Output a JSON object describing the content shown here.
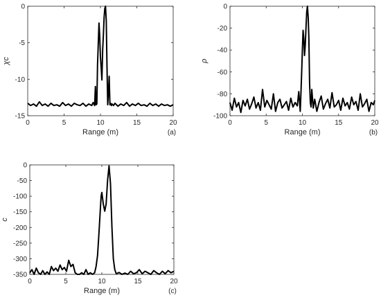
{
  "chart_data": [
    {
      "type": "line",
      "panel_label": "(a)",
      "xlabel": "Range (m)",
      "ylabel": "χc",
      "xlim": [
        0,
        20
      ],
      "ylim": [
        -15,
        0
      ],
      "xticks": [
        "0",
        "5",
        "10",
        "15",
        "20"
      ],
      "yticks": [
        "0",
        "-5",
        "-10",
        "-15"
      ],
      "grid": false,
      "series": [
        {
          "x": [
            0,
            0.4,
            0.8,
            1.2,
            1.6,
            2.0,
            2.4,
            2.8,
            3.2,
            3.6,
            4.0,
            4.4,
            4.8,
            5.2,
            5.6,
            6.0,
            6.4,
            6.8,
            7.2,
            7.6,
            8.0,
            8.4,
            8.8,
            9.0,
            9.2,
            9.3,
            9.4,
            9.5,
            9.6,
            9.8,
            9.9,
            10.0,
            10.1,
            10.2,
            10.3,
            10.4,
            10.5,
            10.6,
            10.7,
            10.8,
            10.9,
            11.0,
            11.1,
            11.2,
            11.3,
            11.4,
            11.5,
            11.6,
            11.8,
            12.0,
            12.4,
            12.8,
            13.2,
            13.6,
            14.0,
            14.4,
            14.8,
            15.2,
            15.6,
            16.0,
            16.4,
            16.8,
            17.2,
            17.6,
            18.0,
            18.4,
            18.8,
            19.2,
            19.6,
            20.0
          ],
          "y": [
            -13.3,
            -13.6,
            -13.4,
            -13.7,
            -13.1,
            -13.6,
            -13.4,
            -13.7,
            -13.3,
            -13.6,
            -13.5,
            -13.7,
            -13.2,
            -13.6,
            -13.4,
            -13.7,
            -13.3,
            -13.5,
            -13.6,
            -13.3,
            -13.7,
            -13.4,
            -13.6,
            -13.2,
            -13.6,
            -11.0,
            -13.5,
            -13.4,
            -8.0,
            -2.3,
            -4.0,
            -7.0,
            -8.5,
            -10.1,
            -6.0,
            -4.0,
            -1.5,
            -0.3,
            0.0,
            -2.0,
            -8.0,
            -13.5,
            -12.0,
            -9.6,
            -13.5,
            -13.3,
            -13.6,
            -13.4,
            -13.6,
            -13.3,
            -13.7,
            -13.4,
            -13.6,
            -13.2,
            -13.7,
            -13.4,
            -13.6,
            -13.3,
            -13.6,
            -13.5,
            -13.7,
            -13.3,
            -13.6,
            -13.4,
            -13.7,
            -13.4,
            -13.6,
            -13.5,
            -13.7,
            -13.5
          ]
        }
      ]
    },
    {
      "type": "line",
      "panel_label": "(b)",
      "xlabel": "Range (m)",
      "ylabel": "ρ",
      "xlim": [
        0,
        20
      ],
      "ylim": [
        -100,
        0
      ],
      "xticks": [
        "0",
        "5",
        "10",
        "15",
        "20"
      ],
      "yticks": [
        "0",
        "-20",
        "-40",
        "-60",
        "-80",
        "-100"
      ],
      "grid": false,
      "series": [
        {
          "x": [
            0,
            0.3,
            0.6,
            0.9,
            1.2,
            1.5,
            1.8,
            2.1,
            2.4,
            2.7,
            3.0,
            3.3,
            3.6,
            3.9,
            4.2,
            4.5,
            4.8,
            5.1,
            5.4,
            5.7,
            6.0,
            6.3,
            6.6,
            6.9,
            7.2,
            7.5,
            7.8,
            8.1,
            8.4,
            8.7,
            9.0,
            9.3,
            9.5,
            9.7,
            9.8,
            9.9,
            10.0,
            10.1,
            10.2,
            10.3,
            10.4,
            10.5,
            10.6,
            10.7,
            10.8,
            10.9,
            11.0,
            11.1,
            11.2,
            11.3,
            11.5,
            11.7,
            12.0,
            12.3,
            12.6,
            12.9,
            13.2,
            13.5,
            13.8,
            14.1,
            14.4,
            14.7,
            15.0,
            15.3,
            15.6,
            15.9,
            16.2,
            16.5,
            16.8,
            17.1,
            17.4,
            17.7,
            18.0,
            18.3,
            18.6,
            18.9,
            19.2,
            19.5,
            19.8,
            20.0
          ],
          "y": [
            -88,
            -95,
            -84,
            -92,
            -88,
            -97,
            -86,
            -91,
            -85,
            -94,
            -89,
            -83,
            -93,
            -88,
            -95,
            -76,
            -92,
            -86,
            -90,
            -94,
            -80,
            -96,
            -88,
            -85,
            -93,
            -90,
            -87,
            -95,
            -84,
            -92,
            -88,
            -91,
            -78,
            -96,
            -80,
            -60,
            -40,
            -22,
            -30,
            -45,
            -35,
            -20,
            -5,
            0,
            -10,
            -30,
            -70,
            -88,
            -92,
            -76,
            -93,
            -85,
            -96,
            -88,
            -82,
            -94,
            -89,
            -85,
            -93,
            -79,
            -92,
            -90,
            -86,
            -95,
            -84,
            -91,
            -88,
            -94,
            -83,
            -90,
            -87,
            -95,
            -80,
            -92,
            -89,
            -85,
            -96,
            -88,
            -90,
            -86
          ]
        }
      ]
    },
    {
      "type": "line",
      "panel_label": "(c)",
      "xlabel": "Range (m)",
      "ylabel": "c",
      "xlim": [
        0,
        20
      ],
      "ylim": [
        -350,
        0
      ],
      "xticks": [
        "0",
        "5",
        "10",
        "15",
        "20"
      ],
      "yticks": [
        "0",
        "-50",
        "-100",
        "-150",
        "-200",
        "-250",
        "-300",
        "-350"
      ],
      "grid": false,
      "series": [
        {
          "x": [
            0,
            0.3,
            0.6,
            0.9,
            1.2,
            1.5,
            1.8,
            2.1,
            2.4,
            2.7,
            3.0,
            3.3,
            3.6,
            3.9,
            4.2,
            4.5,
            4.8,
            5.1,
            5.4,
            5.7,
            6.0,
            6.3,
            6.6,
            6.9,
            7.2,
            7.5,
            7.8,
            8.1,
            8.4,
            8.7,
            9.0,
            9.2,
            9.4,
            9.6,
            9.8,
            9.9,
            10.0,
            10.2,
            10.4,
            10.6,
            10.8,
            11.0,
            11.2,
            11.4,
            11.6,
            11.8,
            12.0,
            12.4,
            12.8,
            13.2,
            13.6,
            14.0,
            14.4,
            14.8,
            15.2,
            15.6,
            16.0,
            16.4,
            16.8,
            17.2,
            17.6,
            18.0,
            18.4,
            18.8,
            19.2,
            19.6,
            20.0
          ],
          "y": [
            -345,
            -335,
            -350,
            -330,
            -345,
            -352,
            -338,
            -350,
            -342,
            -350,
            -325,
            -338,
            -330,
            -340,
            -320,
            -335,
            -328,
            -340,
            -305,
            -325,
            -318,
            -345,
            -350,
            -352,
            -345,
            -350,
            -335,
            -350,
            -345,
            -352,
            -345,
            -325,
            -290,
            -220,
            -140,
            -100,
            -88,
            -125,
            -148,
            -125,
            -50,
            -3,
            -60,
            -200,
            -300,
            -335,
            -348,
            -344,
            -350,
            -346,
            -350,
            -340,
            -348,
            -345,
            -335,
            -348,
            -340,
            -345,
            -350,
            -338,
            -345,
            -352,
            -340,
            -348,
            -338,
            -345,
            -340
          ]
        }
      ]
    }
  ]
}
